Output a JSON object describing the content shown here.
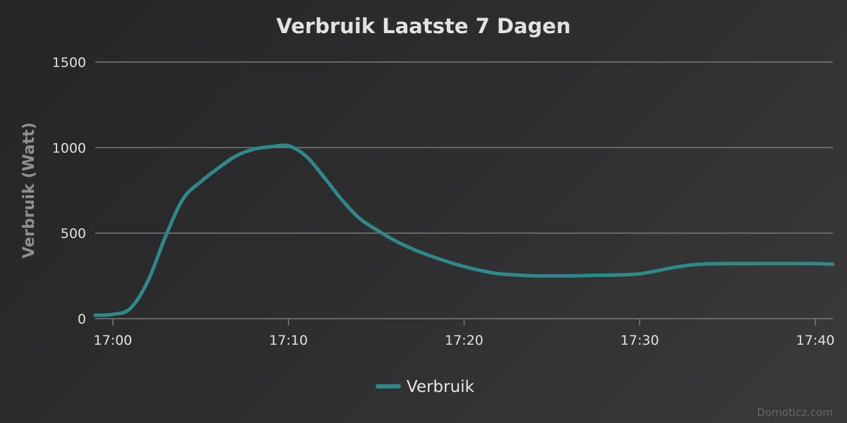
{
  "chart_data": {
    "type": "line",
    "title": "Verbruik Laatste 7 Dagen",
    "ylabel": "Verbruik (Watt)",
    "xlabel": "",
    "ylim": [
      0,
      1500
    ],
    "xlim": [
      "16:59",
      "17:41"
    ],
    "y_ticks": [
      0,
      500,
      1000,
      1500
    ],
    "x_ticks": [
      "17:00",
      "17:10",
      "17:20",
      "17:30",
      "17:40"
    ],
    "grid": true,
    "legend": "bottom-center",
    "series": [
      {
        "name": "Verbruik",
        "color": "#2e8a8a",
        "x": [
          "16:59",
          "17:00",
          "17:01",
          "17:02",
          "17:03",
          "17:04",
          "17:05",
          "17:06",
          "17:07",
          "17:08",
          "17:09",
          "17:10",
          "17:11",
          "17:12",
          "17:13",
          "17:14",
          "17:15",
          "17:16",
          "17:17",
          "17:18",
          "17:19",
          "17:20",
          "17:21",
          "17:22",
          "17:23",
          "17:24",
          "17:25",
          "17:26",
          "17:27",
          "17:28",
          "17:29",
          "17:30",
          "17:31",
          "17:32",
          "17:33",
          "17:34",
          "17:35",
          "17:36",
          "17:37",
          "17:38",
          "17:39",
          "17:40",
          "17:41"
        ],
        "y": [
          20,
          25,
          60,
          220,
          480,
          700,
          800,
          880,
          950,
          990,
          1005,
          1010,
          950,
          830,
          700,
          590,
          520,
          460,
          410,
          370,
          335,
          305,
          280,
          262,
          255,
          250,
          250,
          250,
          252,
          254,
          256,
          262,
          280,
          300,
          315,
          320,
          322,
          322,
          322,
          322,
          322,
          322,
          318
        ]
      }
    ]
  },
  "credits": "Domoticz.com"
}
